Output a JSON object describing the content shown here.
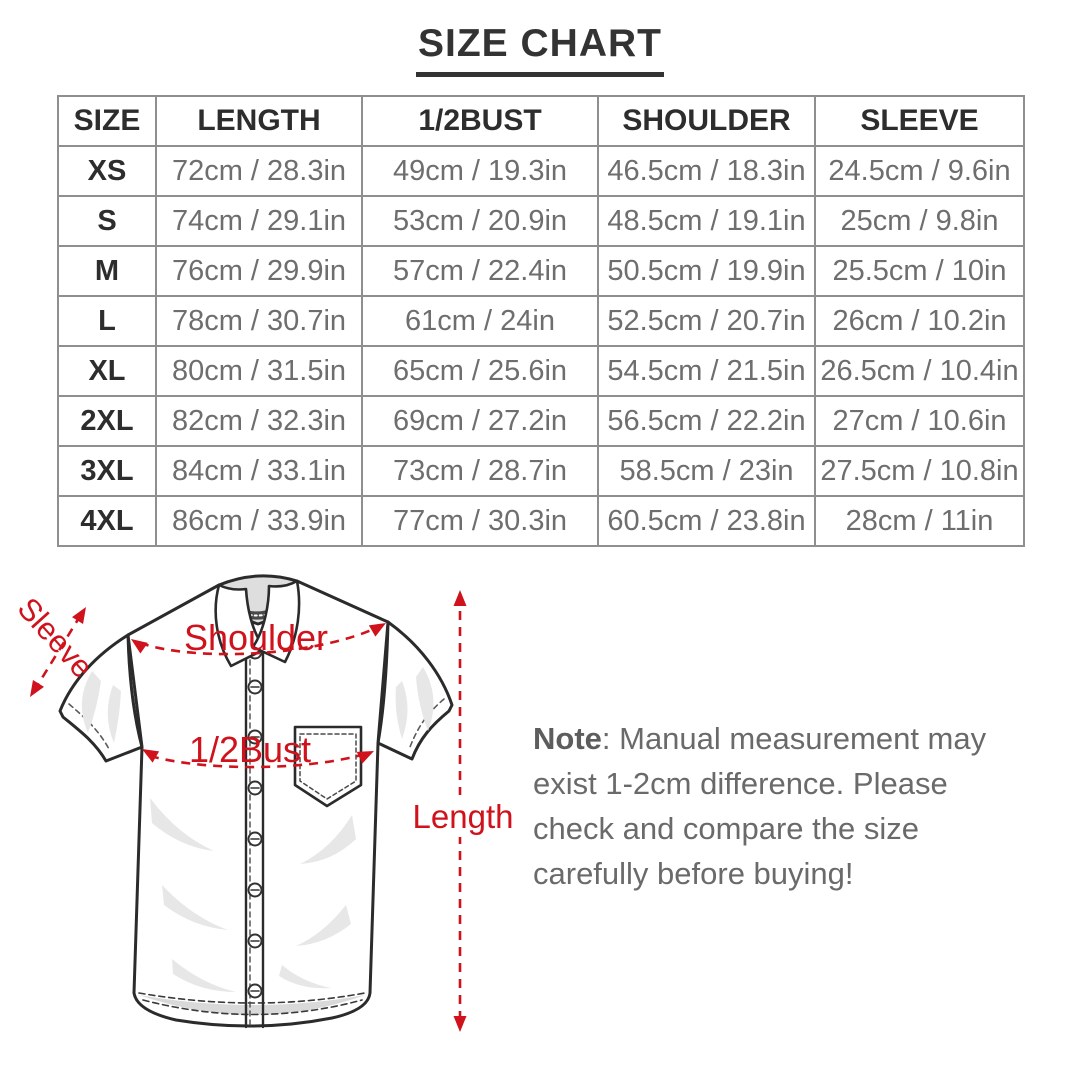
{
  "title": "SIZE CHART",
  "size_table": {
    "headers": [
      "SIZE",
      "LENGTH",
      "1/2BUST",
      "SHOULDER",
      "SLEEVE"
    ],
    "rows": [
      [
        "XS",
        "72cm / 28.3in",
        "49cm / 19.3in",
        "46.5cm / 18.3in",
        "24.5cm / 9.6in"
      ],
      [
        "S",
        "74cm / 29.1in",
        "53cm / 20.9in",
        "48.5cm / 19.1in",
        "25cm / 9.8in"
      ],
      [
        "M",
        "76cm / 29.9in",
        "57cm / 22.4in",
        "50.5cm / 19.9in",
        "25.5cm / 10in"
      ],
      [
        "L",
        "78cm / 30.7in",
        "61cm / 24in",
        "52.5cm / 20.7in",
        "26cm / 10.2in"
      ],
      [
        "XL",
        "80cm / 31.5in",
        "65cm / 25.6in",
        "54.5cm / 21.5in",
        "26.5cm / 10.4in"
      ],
      [
        "2XL",
        "82cm / 32.3in",
        "69cm / 27.2in",
        "56.5cm / 22.2in",
        "27cm / 10.6in"
      ],
      [
        "3XL",
        "84cm / 33.1in",
        "73cm / 28.7in",
        "58.5cm / 23in",
        "27.5cm / 10.8in"
      ],
      [
        "4XL",
        "86cm / 33.9in",
        "77cm / 30.3in",
        "60.5cm / 23.8in",
        "28cm / 11in"
      ]
    ]
  },
  "diagram": {
    "labels": {
      "sleeve": "Sleeve",
      "shoulder": "Shoulder",
      "half_bust": "1/2Bust",
      "length": "Length"
    },
    "accent_color": "#cf121b",
    "outline_color": "#2b2b2b"
  },
  "note": {
    "label": "Note",
    "line1": ": Manual measurement may",
    "line2": "exist 1-2cm difference. Please",
    "line3": "check and compare the size",
    "line4": "carefully before buying!"
  }
}
